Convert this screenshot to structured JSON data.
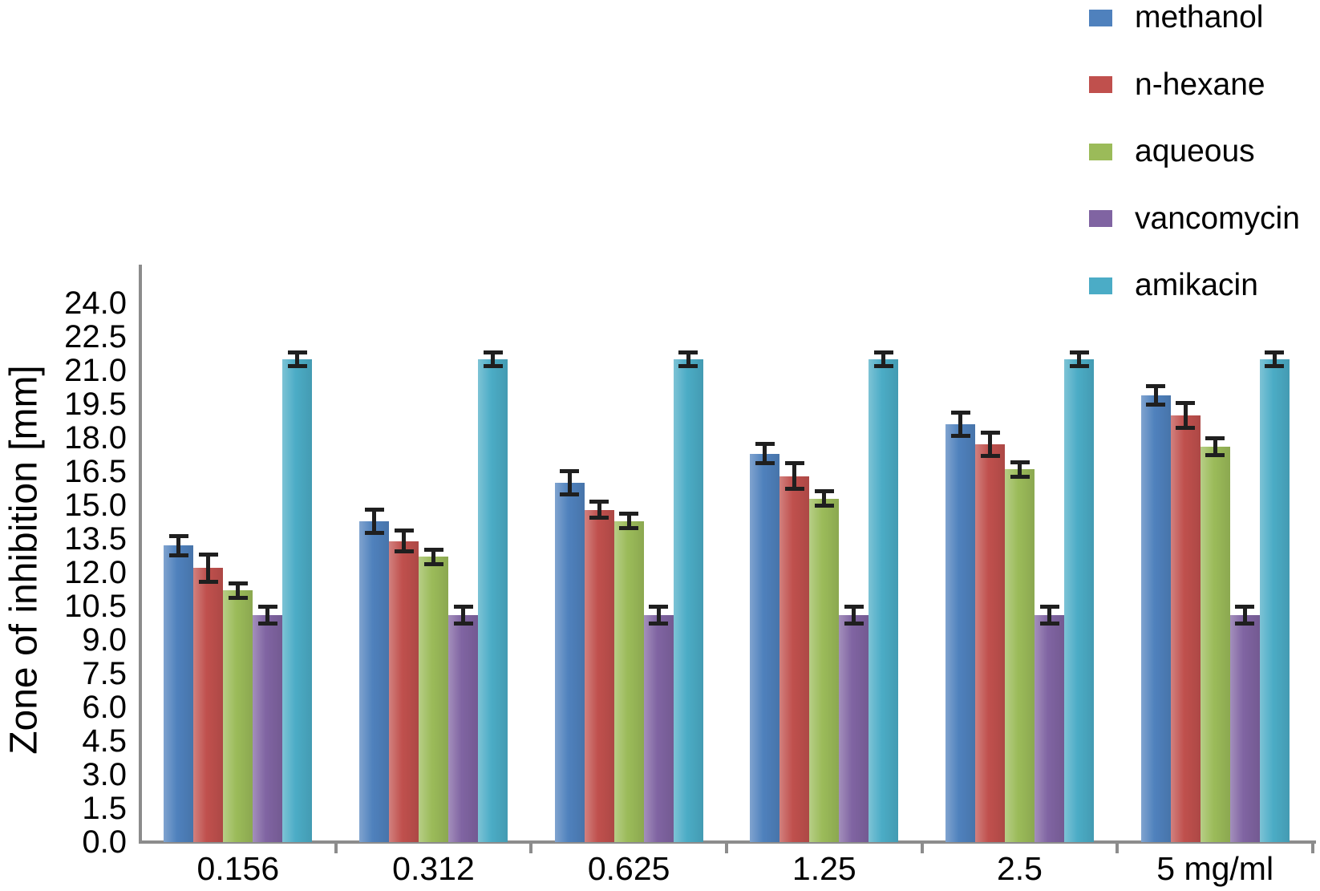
{
  "figure": {
    "background": "#ffffff",
    "axis_color": "#8c8c8c",
    "error_bar_color": "#1f1f1f"
  },
  "chart_data": {
    "type": "bar",
    "title": "",
    "xlabel": "",
    "ylabel": "Zone of inhibition [mm]",
    "categories": [
      "0.156",
      "0.312",
      "0.625",
      "1.25",
      "2.5",
      "5 mg/ml"
    ],
    "series": [
      {
        "name": "methanol",
        "color": "#4f81bd",
        "values": [
          13.2,
          14.3,
          16.0,
          17.3,
          18.6,
          19.9
        ],
        "errors": [
          0.4,
          0.5,
          0.5,
          0.4,
          0.5,
          0.4
        ]
      },
      {
        "name": "n-hexane",
        "color": "#c0504d",
        "values": [
          12.2,
          13.4,
          14.8,
          16.3,
          17.7,
          19.0
        ],
        "errors": [
          0.6,
          0.45,
          0.35,
          0.55,
          0.5,
          0.55
        ]
      },
      {
        "name": "aqueous",
        "color": "#9bbb59",
        "values": [
          11.2,
          12.7,
          14.3,
          15.3,
          16.6,
          17.6
        ],
        "errors": [
          0.3,
          0.3,
          0.3,
          0.3,
          0.3,
          0.35
        ]
      },
      {
        "name": "vancomycin",
        "color": "#8064a2",
        "values": [
          10.1,
          10.1,
          10.1,
          10.1,
          10.1,
          10.1
        ],
        "errors": [
          0.35,
          0.35,
          0.35,
          0.35,
          0.35,
          0.35
        ]
      },
      {
        "name": "amikacin",
        "color": "#4bacc6",
        "values": [
          21.5,
          21.5,
          21.5,
          21.5,
          21.5,
          21.5
        ],
        "errors": [
          0.3,
          0.3,
          0.3,
          0.3,
          0.3,
          0.3
        ]
      }
    ],
    "yticks": [
      "0.0",
      "1.5",
      "3.0",
      "4.5",
      "6.0",
      "7.5",
      "9.0",
      "10.5",
      "12.0",
      "13.5",
      "15.0",
      "16.5",
      "18.0",
      "19.5",
      "21.0",
      "22.5",
      "24.0"
    ],
    "ylim": [
      0,
      25.7
    ],
    "grid": false,
    "legend_position": "top-right",
    "error_bars": true
  }
}
